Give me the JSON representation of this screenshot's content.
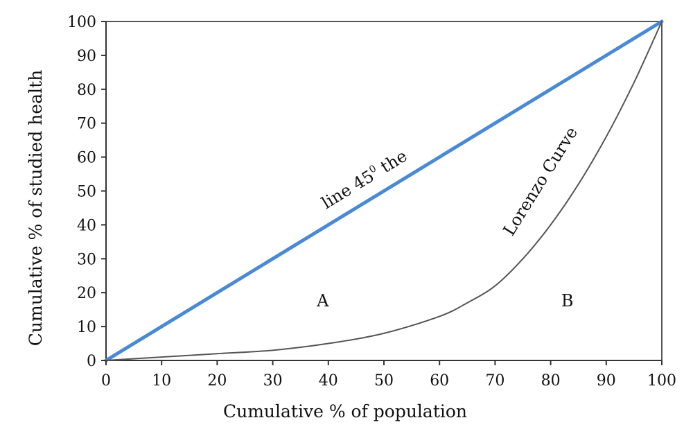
{
  "chart_data": {
    "type": "line",
    "title": "",
    "xlabel": "Cumulative % of population",
    "ylabel": "Cumulative % of studied health",
    "xlim": [
      0,
      100
    ],
    "ylim": [
      0,
      100
    ],
    "x_ticks": [
      "0",
      "10",
      "20",
      "30",
      "40",
      "50",
      "60",
      "70",
      "80",
      "90",
      "100"
    ],
    "y_ticks": [
      "0",
      "10",
      "20",
      "30",
      "40",
      "50",
      "60",
      "70",
      "80",
      "90",
      "100"
    ],
    "grid": false,
    "legend": "none",
    "series": [
      {
        "name": "",
        "color": "#4a8ad4",
        "x": [
          0,
          100
        ],
        "y": [
          0,
          100
        ]
      },
      {
        "name": "",
        "color": "#555555",
        "x": [
          0,
          10,
          20,
          30,
          40,
          50,
          60,
          65,
          70,
          75,
          80,
          85,
          90,
          95,
          100
        ],
        "y": [
          0,
          1,
          2,
          3,
          5,
          8,
          13,
          17,
          22,
          30,
          40,
          52,
          66,
          82,
          100
        ]
      }
    ],
    "annotations": {
      "diagonal_label": {
        "base": "line 45",
        "sup": "0",
        "tail": " the",
        "x": 47,
        "y": 52
      },
      "curve_label": {
        "text": "Lorenzo Curve",
        "x": 79,
        "y": 52
      },
      "region_a": {
        "text": "A",
        "x": 39,
        "y": 16
      },
      "region_b": {
        "text": "B",
        "x": 83,
        "y": 16
      }
    }
  }
}
